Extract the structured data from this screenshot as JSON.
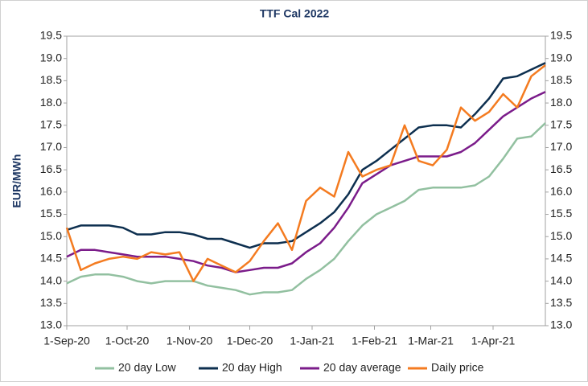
{
  "chart_data": {
    "type": "line",
    "title": "TTF Cal 2022",
    "ylabel": "EUR/MWh",
    "x": [
      "2020-09-01",
      "2020-09-08",
      "2020-09-15",
      "2020-09-22",
      "2020-09-29",
      "2020-10-06",
      "2020-10-13",
      "2020-10-20",
      "2020-10-27",
      "2020-11-03",
      "2020-11-10",
      "2020-11-17",
      "2020-11-24",
      "2020-12-01",
      "2020-12-08",
      "2020-12-15",
      "2020-12-22",
      "2020-12-29",
      "2021-01-05",
      "2021-01-12",
      "2021-01-19",
      "2021-01-26",
      "2021-02-02",
      "2021-02-09",
      "2021-02-16",
      "2021-02-23",
      "2021-03-02",
      "2021-03-09",
      "2021-03-16",
      "2021-03-23",
      "2021-03-30",
      "2021-04-06",
      "2021-04-13",
      "2021-04-20",
      "2021-04-27"
    ],
    "xlim": [
      "2020-09-01",
      "2021-04-27"
    ],
    "xticks": [
      {
        "value": "2020-09-01",
        "label": "1-Sep-20"
      },
      {
        "value": "2020-10-01",
        "label": "1-Oct-20"
      },
      {
        "value": "2020-11-01",
        "label": "1-Nov-20"
      },
      {
        "value": "2020-12-01",
        "label": "1-Dec-20"
      },
      {
        "value": "2021-01-01",
        "label": "1-Jan-21"
      },
      {
        "value": "2021-02-01",
        "label": "1-Feb-21"
      },
      {
        "value": "2021-03-01",
        "label": "1-Mar-21"
      },
      {
        "value": "2021-04-01",
        "label": "1-Apr-21"
      }
    ],
    "ylim": [
      13,
      19.5
    ],
    "yticks": [
      {
        "value": 13,
        "label": "13.0"
      },
      {
        "value": 13.5,
        "label": "13.5"
      },
      {
        "value": 14,
        "label": "14.0"
      },
      {
        "value": 14.5,
        "label": "14.5"
      },
      {
        "value": 15,
        "label": "15.0"
      },
      {
        "value": 15.5,
        "label": "15.5"
      },
      {
        "value": 16,
        "label": "16.0"
      },
      {
        "value": 16.5,
        "label": "16.5"
      },
      {
        "value": 17,
        "label": "17.0"
      },
      {
        "value": 17.5,
        "label": "17.5"
      },
      {
        "value": 18,
        "label": "18.0"
      },
      {
        "value": 18.5,
        "label": "18.5"
      },
      {
        "value": 19,
        "label": "19.0"
      },
      {
        "value": 19.5,
        "label": "19.5"
      }
    ],
    "y2lim": [
      13,
      19.5
    ],
    "y2ticks": [
      {
        "value": 13,
        "label": "13.0"
      },
      {
        "value": 13.5,
        "label": "13.5"
      },
      {
        "value": 14,
        "label": "14.0"
      },
      {
        "value": 14.5,
        "label": "14.5"
      },
      {
        "value": 15,
        "label": "15.0"
      },
      {
        "value": 15.5,
        "label": "15.5"
      },
      {
        "value": 16,
        "label": "16.0"
      },
      {
        "value": 16.5,
        "label": "16.5"
      },
      {
        "value": 17,
        "label": "17.0"
      },
      {
        "value": 17.5,
        "label": "17.5"
      },
      {
        "value": 18,
        "label": "18.0"
      },
      {
        "value": 18.5,
        "label": "18.5"
      },
      {
        "value": 19,
        "label": "19.0"
      },
      {
        "value": 19.5,
        "label": "19.5"
      }
    ],
    "legend": "bottom",
    "series": [
      {
        "name": "20 day Low",
        "color": "#92c0a0",
        "values": [
          13.95,
          14.1,
          14.15,
          14.15,
          14.1,
          14.0,
          13.95,
          14.0,
          14.0,
          14.0,
          13.9,
          13.85,
          13.8,
          13.7,
          13.75,
          13.75,
          13.8,
          14.05,
          14.25,
          14.5,
          14.9,
          15.25,
          15.5,
          15.65,
          15.8,
          16.05,
          16.1,
          16.1,
          16.1,
          16.15,
          16.35,
          16.75,
          17.2,
          17.25,
          17.55
        ]
      },
      {
        "name": "20 day High",
        "color": "#0d2f4f",
        "values": [
          15.15,
          15.25,
          15.25,
          15.25,
          15.2,
          15.05,
          15.05,
          15.1,
          15.1,
          15.05,
          14.95,
          14.95,
          14.85,
          14.75,
          14.85,
          14.85,
          14.9,
          15.1,
          15.3,
          15.55,
          15.95,
          16.5,
          16.7,
          16.95,
          17.2,
          17.45,
          17.5,
          17.5,
          17.45,
          17.75,
          18.1,
          18.55,
          18.6,
          18.75,
          18.9
        ]
      },
      {
        "name": "20 day average",
        "color": "#7b1c8a",
        "values": [
          14.55,
          14.7,
          14.7,
          14.65,
          14.6,
          14.55,
          14.55,
          14.55,
          14.5,
          14.45,
          14.35,
          14.3,
          14.2,
          14.25,
          14.3,
          14.3,
          14.4,
          14.65,
          14.85,
          15.2,
          15.65,
          16.2,
          16.4,
          16.6,
          16.7,
          16.8,
          16.8,
          16.8,
          16.9,
          17.1,
          17.4,
          17.7,
          17.9,
          18.1,
          18.25
        ]
      },
      {
        "name": "Daily price",
        "color": "#f47b20",
        "values": [
          15.2,
          14.25,
          14.4,
          14.5,
          14.55,
          14.5,
          14.65,
          14.6,
          14.65,
          14.0,
          14.5,
          14.35,
          14.2,
          14.45,
          14.9,
          15.3,
          14.7,
          15.8,
          16.1,
          15.9,
          16.9,
          16.35,
          16.5,
          16.6,
          17.5,
          16.7,
          16.6,
          16.95,
          17.9,
          17.6,
          17.8,
          18.2,
          17.9,
          18.6,
          18.85
        ]
      }
    ]
  }
}
